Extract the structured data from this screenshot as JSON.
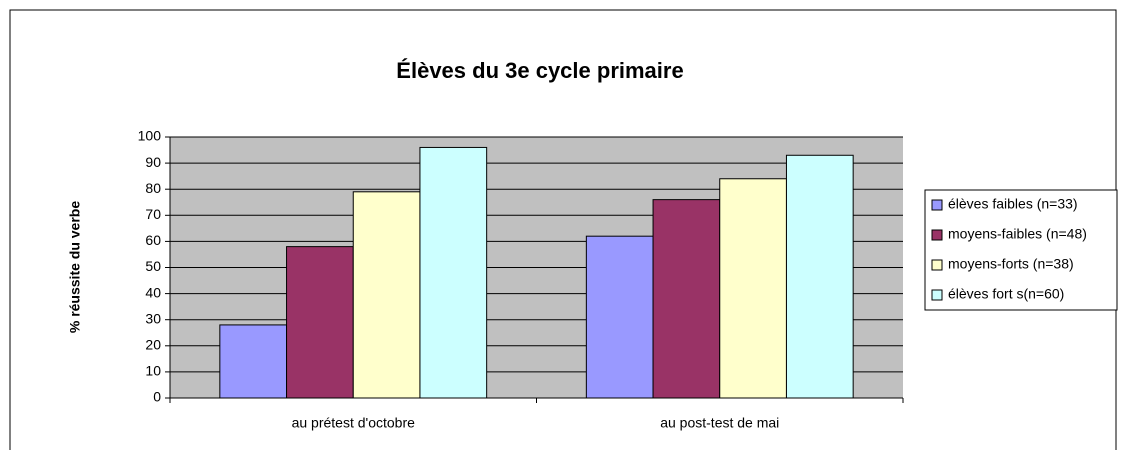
{
  "chart_data": {
    "type": "bar",
    "title": "Élèves du 3e cycle primaire",
    "y_label": "% réussite du verbe",
    "categories": [
      "au prétest d'octobre",
      "au post-test de mai"
    ],
    "series": [
      {
        "name": "élèves faibles (n=33)",
        "color": "#9999ff",
        "values": [
          28,
          62
        ]
      },
      {
        "name": "moyens-faibles (n=48)",
        "color": "#993366",
        "values": [
          58,
          76
        ]
      },
      {
        "name": "moyens-forts (n=38)",
        "color": "#ffffcc",
        "values": [
          79,
          84
        ]
      },
      {
        "name": "élèves fort s(n=60)",
        "color": "#ccffff",
        "values": [
          96,
          93
        ]
      }
    ],
    "ylim": [
      0,
      100
    ],
    "yticks": [
      0,
      10,
      20,
      30,
      40,
      50,
      60,
      70,
      80,
      90,
      100
    ],
    "grid": true,
    "legend": "right"
  }
}
